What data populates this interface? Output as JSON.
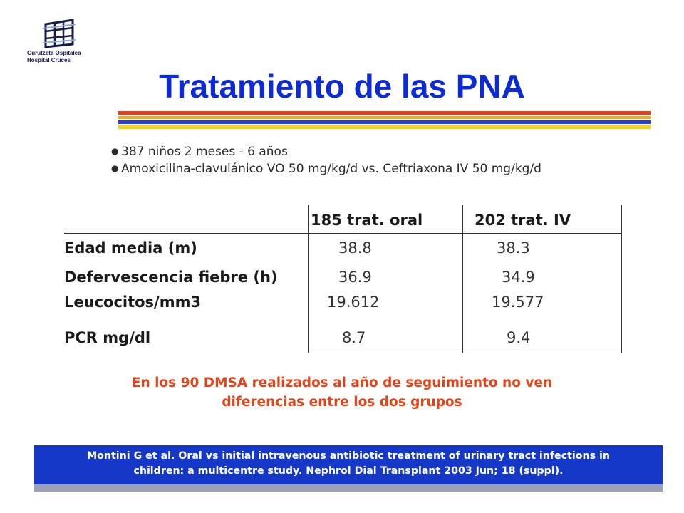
{
  "logo": {
    "line1": "Gurutzeta Ospitalea",
    "line2": "Hospital Cruces"
  },
  "title": "Tratamiento de las PNA",
  "colors": {
    "title": "#0c2bd4",
    "conclusion": "#e0451b",
    "citation_bg": "#1538c8",
    "stripe_red": "#e8401a",
    "stripe_orange": "#f5a623",
    "stripe_blue": "#1f3fd6",
    "stripe_yellow": "#f7d21a"
  },
  "bullets": [
    "387 niños 2 meses - 6 años",
    "Amoxicilina-clavulánico VO 50 mg/kg/d vs. Ceftriaxona IV 50 mg/kg/d"
  ],
  "table": {
    "columns": [
      "185 trat. oral",
      "202 trat. IV"
    ],
    "rows": [
      {
        "label": "Edad media (m)",
        "oral": "38.8",
        "iv": "38.3"
      },
      {
        "label": "Defervescencia fiebre (h)",
        "oral": "36.9",
        "iv": "34.9"
      },
      {
        "label": "Leucocitos/mm3",
        "oral": "19.612",
        "iv": "19.577"
      },
      {
        "label": "PCR mg/dl",
        "oral": "8.7",
        "iv": "9.4"
      }
    ]
  },
  "conclusion": {
    "line1": "En los 90 DMSA realizados al año de seguimiento no ven",
    "line2": "diferencias entre los dos grupos"
  },
  "citation": {
    "line1": "Montini G et al. Oral vs initial intravenous antibiotic treatment of urinary tract infections in",
    "line2": "children: a multicentre study. Nephrol Dial Transplant 2003 Jun; 18 (suppl)."
  }
}
